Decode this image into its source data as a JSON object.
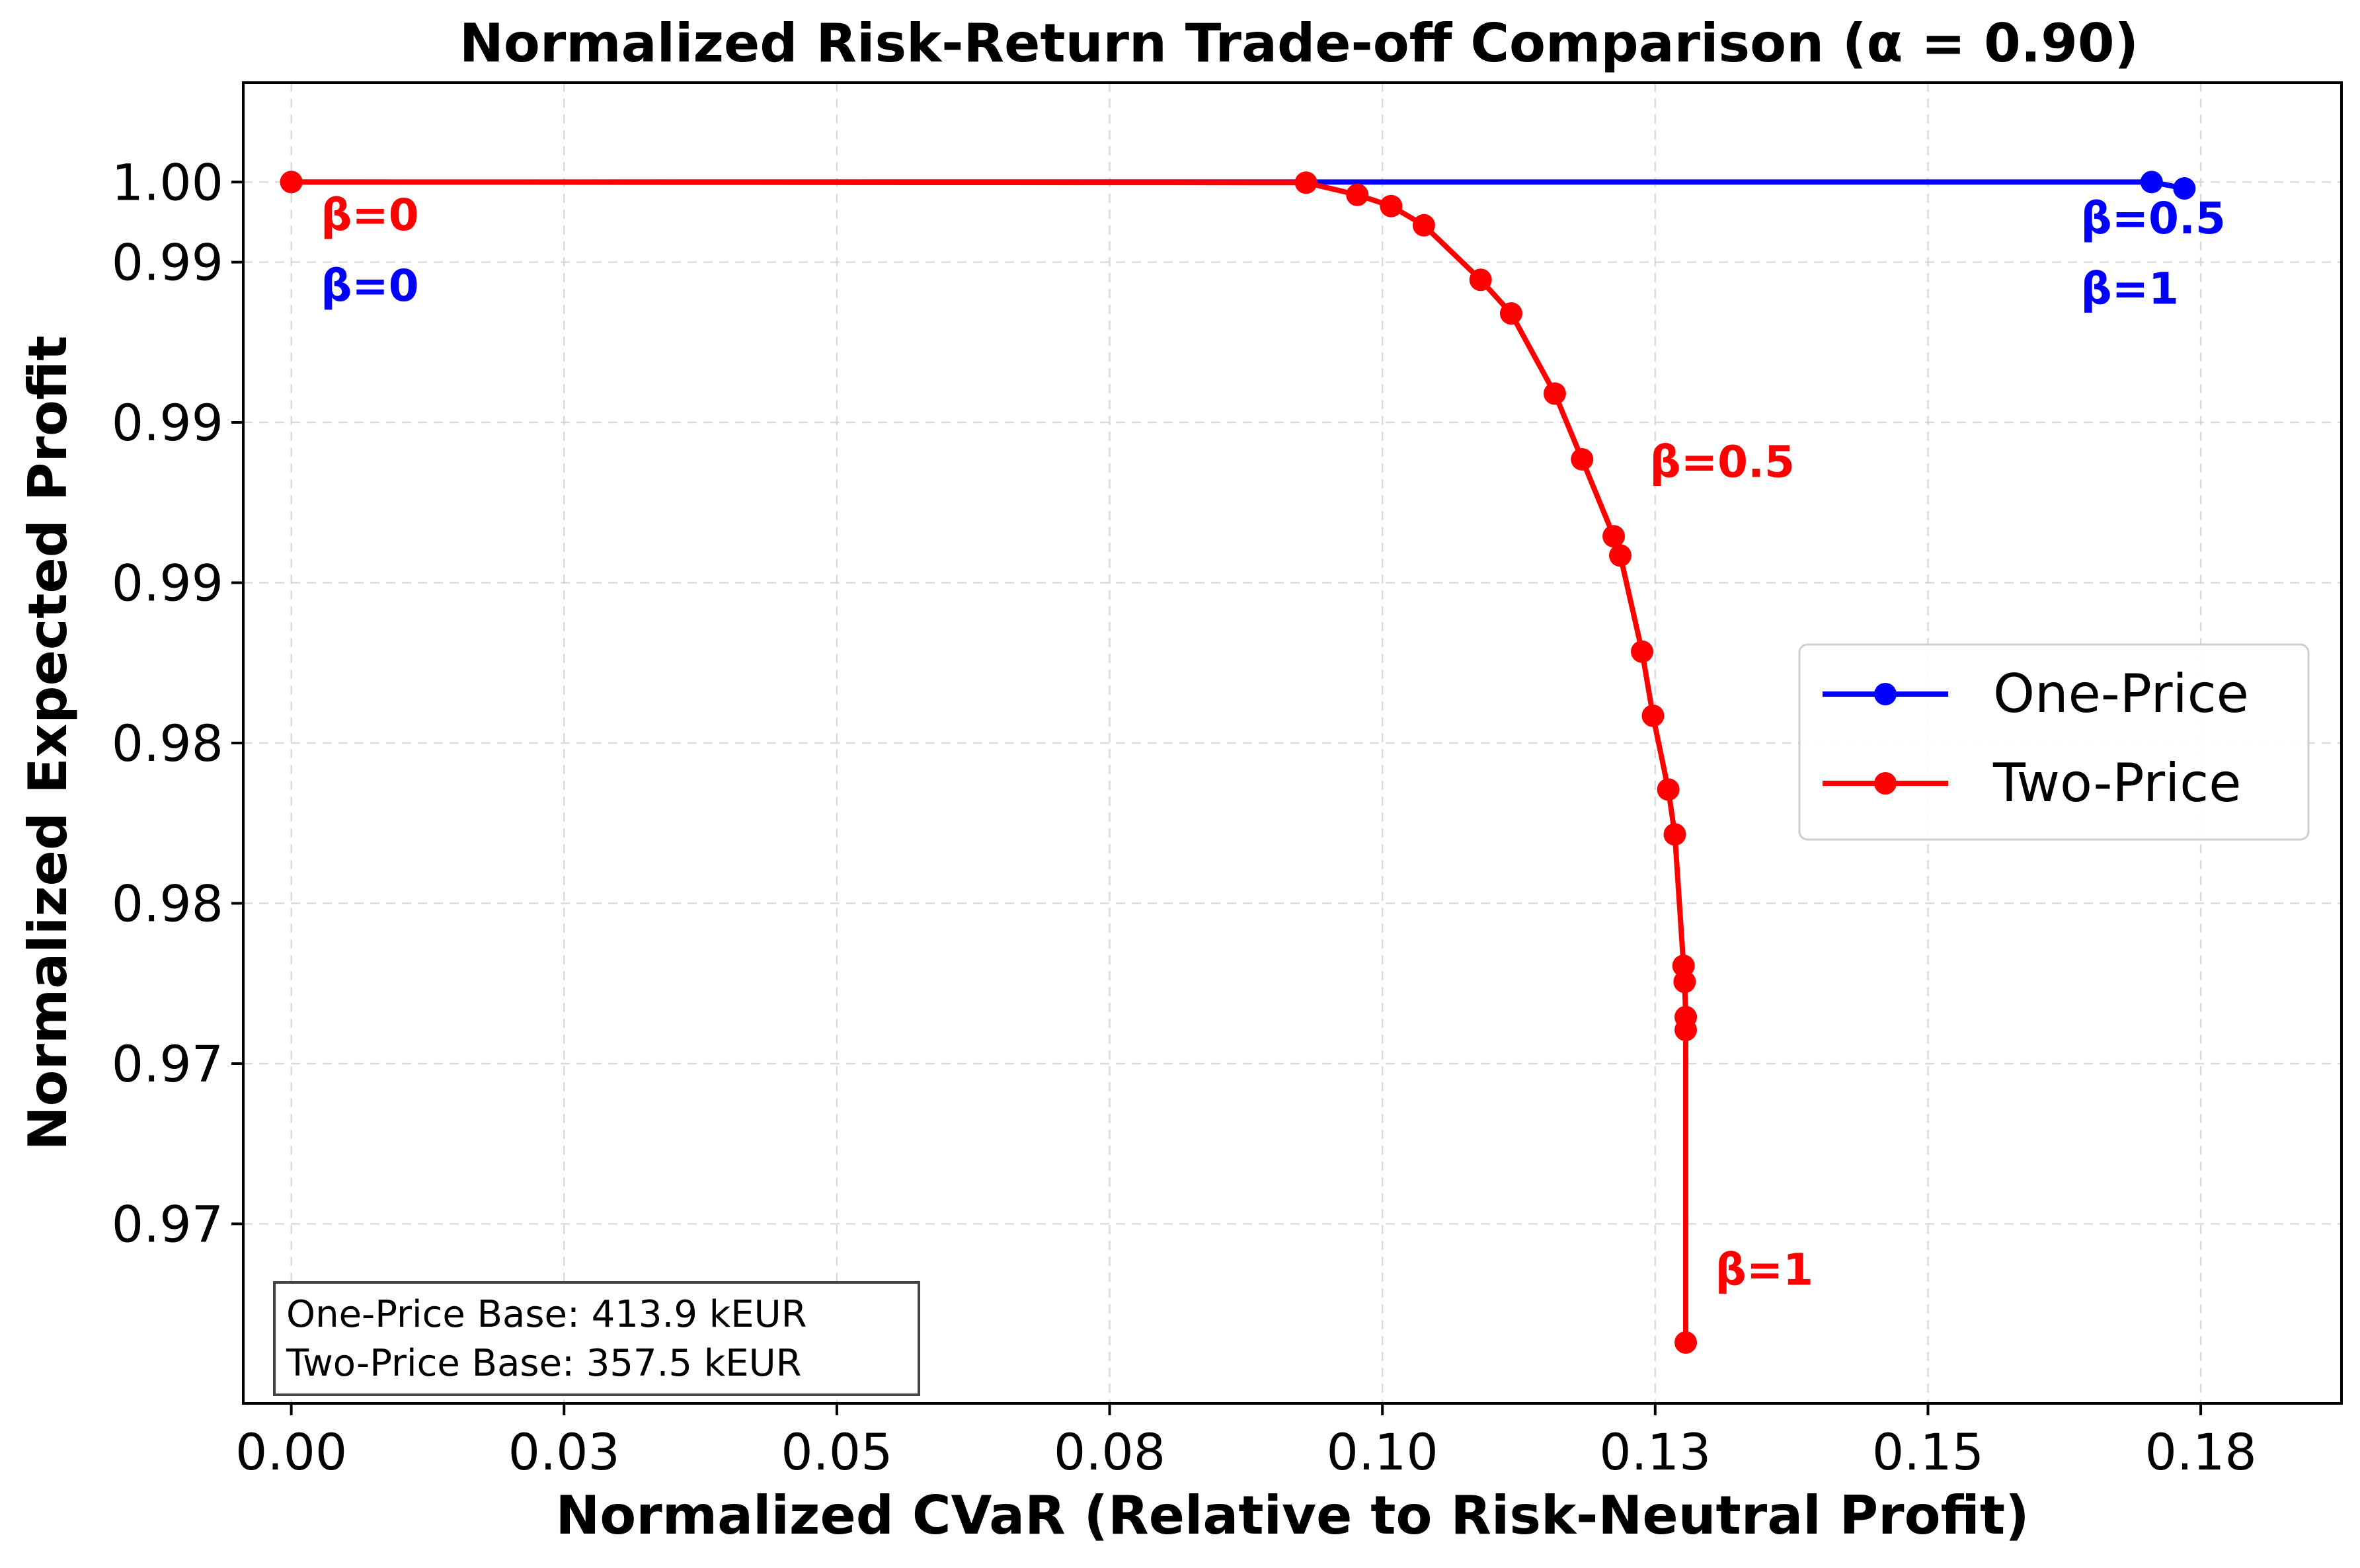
{
  "chart_data": {
    "type": "line",
    "title": "Normalized Risk-Return Trade-off Comparison (α = 0.90)",
    "xlabel": "Normalized CVaR (Relative to Risk-Neutral Profit)",
    "ylabel": "Normalized Expected Profit",
    "xlim": [
      -0.0044,
      0.1879
    ],
    "ylim": [
      0.9619,
      1.0031
    ],
    "x_ticks": [
      0.0,
      0.025,
      0.05,
      0.075,
      0.1,
      0.125,
      0.15,
      0.175
    ],
    "x_tick_labels": [
      "0.00",
      "0.03",
      "0.05",
      "0.08",
      "0.10",
      "0.13",
      "0.15",
      "0.18"
    ],
    "y_ticks": [
      0.9675,
      0.9725,
      0.9775,
      0.9825,
      0.9875,
      0.9925,
      0.9975,
      1.0
    ],
    "y_tick_labels": [
      "0.97",
      "0.97",
      "0.98",
      "0.98",
      "0.99",
      "0.99",
      "0.99",
      "1.00"
    ],
    "grid": true,
    "legend_position": "center-right",
    "series": [
      {
        "name": "One-Price",
        "color": "#0000ff",
        "x": [
          0.0,
          0.1705,
          0.1735
        ],
        "y": [
          1.0,
          1.0,
          0.9998
        ]
      },
      {
        "name": "Two-Price",
        "color": "#ff0000",
        "x": [
          0.0,
          0.093,
          0.0977,
          0.1008,
          0.1038,
          0.109,
          0.1118,
          0.1158,
          0.1183,
          0.1212,
          0.1218,
          0.1238,
          0.1248,
          0.1262,
          0.1268,
          0.1276,
          0.1277,
          0.1278,
          0.1278,
          0.1278
        ],
        "y": [
          1.0,
          0.99998,
          0.9996,
          0.99925,
          0.99865,
          0.99695,
          0.9959,
          0.9934,
          0.99135,
          0.98895,
          0.98835,
          0.98535,
          0.98335,
          0.98105,
          0.97965,
          0.97555,
          0.97505,
          0.97395,
          0.97355,
          0.9638
        ]
      }
    ],
    "annotations": [
      {
        "text": "β=0",
        "color": "#ff0000",
        "x": 0.0027,
        "y": 0.9985
      },
      {
        "text": "β=0",
        "color": "#0000ff",
        "x": 0.0027,
        "y": 0.9963
      },
      {
        "text": "β=0.5",
        "color": "#0000ff",
        "x": 0.164,
        "y": 0.9984
      },
      {
        "text": "β=1",
        "color": "#0000ff",
        "x": 0.164,
        "y": 0.9962
      },
      {
        "text": "β=0.5",
        "color": "#ff0000",
        "x": 0.1245,
        "y": 0.9908
      },
      {
        "text": "β=1",
        "color": "#ff0000",
        "x": 0.1305,
        "y": 0.9656
      }
    ],
    "info_box": [
      "One-Price Base: 413.9 kEUR",
      "Two-Price Base: 357.5 kEUR"
    ]
  }
}
